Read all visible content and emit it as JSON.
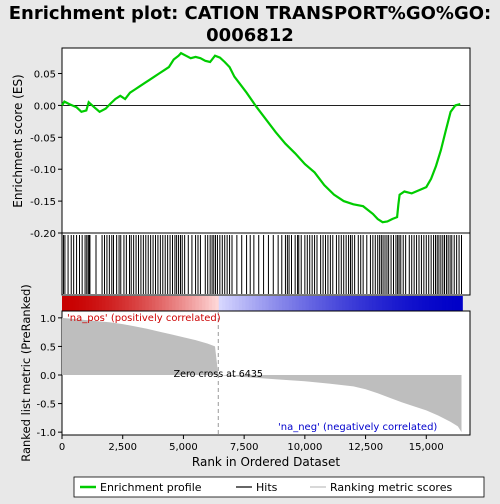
{
  "chart_data": {
    "type": "line",
    "title": "Enrichment plot: CATION TRANSPORT%GO%GO:\n0006812",
    "xlabel": "Rank in Ordered Dataset",
    "x_ticks": [
      0,
      2500,
      5000,
      7500,
      10000,
      12500,
      15000
    ],
    "x_tick_labels": [
      "0",
      "2,500",
      "5,000",
      "7,500",
      "10,000",
      "12,500",
      "15,000"
    ],
    "xlim": [
      0,
      16800
    ],
    "enrichment_panel": {
      "ylabel": "Enrichment score (ES)",
      "ylim": [
        -0.2,
        0.09
      ],
      "y_ticks": [
        -0.2,
        -0.15,
        -0.1,
        -0.05,
        0.0,
        0.05
      ],
      "y_tick_labels": [
        "-0.20",
        "-0.15",
        "-0.10",
        "-0.05",
        "0.00",
        "0.05"
      ],
      "series_name": "Enrichment profile",
      "color": "#00cc00",
      "points": [
        [
          0,
          0.0
        ],
        [
          100,
          0.006
        ],
        [
          300,
          0.002
        ],
        [
          600,
          -0.003
        ],
        [
          800,
          -0.01
        ],
        [
          1000,
          -0.008
        ],
        [
          1100,
          0.005
        ],
        [
          1300,
          -0.002
        ],
        [
          1550,
          -0.01
        ],
        [
          1800,
          -0.005
        ],
        [
          2000,
          0.003
        ],
        [
          2200,
          0.01
        ],
        [
          2400,
          0.015
        ],
        [
          2600,
          0.01
        ],
        [
          2800,
          0.02
        ],
        [
          3000,
          0.025
        ],
        [
          3200,
          0.03
        ],
        [
          3400,
          0.035
        ],
        [
          3600,
          0.04
        ],
        [
          3800,
          0.045
        ],
        [
          4000,
          0.05
        ],
        [
          4200,
          0.055
        ],
        [
          4400,
          0.06
        ],
        [
          4600,
          0.072
        ],
        [
          4800,
          0.078
        ],
        [
          4900,
          0.082
        ],
        [
          5100,
          0.078
        ],
        [
          5300,
          0.074
        ],
        [
          5500,
          0.076
        ],
        [
          5700,
          0.074
        ],
        [
          5900,
          0.07
        ],
        [
          6100,
          0.068
        ],
        [
          6300,
          0.078
        ],
        [
          6500,
          0.075
        ],
        [
          6700,
          0.068
        ],
        [
          6900,
          0.06
        ],
        [
          7100,
          0.045
        ],
        [
          7300,
          0.035
        ],
        [
          7600,
          0.02
        ],
        [
          8000,
          -0.002
        ],
        [
          8400,
          -0.022
        ],
        [
          8800,
          -0.042
        ],
        [
          9200,
          -0.06
        ],
        [
          9600,
          -0.075
        ],
        [
          10000,
          -0.092
        ],
        [
          10400,
          -0.105
        ],
        [
          10800,
          -0.125
        ],
        [
          11200,
          -0.14
        ],
        [
          11600,
          -0.15
        ],
        [
          12000,
          -0.155
        ],
        [
          12400,
          -0.158
        ],
        [
          12800,
          -0.17
        ],
        [
          13000,
          -0.178
        ],
        [
          13200,
          -0.183
        ],
        [
          13400,
          -0.182
        ],
        [
          13600,
          -0.178
        ],
        [
          13800,
          -0.175
        ],
        [
          13850,
          -0.155
        ],
        [
          13900,
          -0.14
        ],
        [
          14100,
          -0.135
        ],
        [
          14400,
          -0.138
        ],
        [
          14700,
          -0.133
        ],
        [
          15000,
          -0.128
        ],
        [
          15200,
          -0.115
        ],
        [
          15400,
          -0.095
        ],
        [
          15600,
          -0.07
        ],
        [
          15800,
          -0.04
        ],
        [
          16000,
          -0.01
        ],
        [
          16200,
          0.0
        ],
        [
          16400,
          0.002
        ]
      ]
    },
    "hits_panel": {
      "series_name": "Hits",
      "hit_ranks": [
        60,
        120,
        250,
        380,
        480,
        600,
        720,
        830,
        950,
        1020,
        1080,
        1120,
        1150,
        1400,
        1650,
        1750,
        1850,
        1950,
        2050,
        2120,
        2250,
        2350,
        2420,
        2550,
        2650,
        2780,
        2850,
        2950,
        3050,
        3150,
        3250,
        3350,
        3450,
        3550,
        3650,
        3750,
        3850,
        3950,
        4050,
        4150,
        4250,
        4350,
        4450,
        4550,
        4650,
        4720,
        4800,
        4880,
        4950,
        5050,
        5200,
        5350,
        5500,
        5600,
        5700,
        5900,
        6000,
        6100,
        6180,
        6250,
        6320,
        6400,
        6500,
        6600,
        6700,
        6800,
        6900,
        7000,
        7200,
        7400,
        7600,
        7750,
        7900,
        8100,
        8300,
        8500,
        8700,
        8900,
        9050,
        9200,
        9280,
        9350,
        9450,
        9600,
        9700,
        9750,
        9850,
        10000,
        10100,
        10200,
        10300,
        10400,
        10500,
        10650,
        10750,
        10850,
        10950,
        11050,
        11150,
        11300,
        11400,
        11500,
        11600,
        11700,
        11800,
        11880,
        11950,
        12050,
        12200,
        12300,
        12400,
        12550,
        12700,
        12800,
        12900,
        13000,
        13080,
        13150,
        13220,
        13300,
        13380,
        13450,
        13550,
        13650,
        13750,
        13820,
        13880,
        13950,
        14050,
        14150,
        14300,
        14400,
        14500,
        14600,
        14700,
        14800,
        14900,
        15000,
        15100,
        15200,
        15300,
        15380,
        15450,
        15520,
        15600,
        15680,
        15750,
        15830,
        15900,
        15980,
        16050,
        16150,
        16250,
        16350,
        16450
      ]
    },
    "metric_panel": {
      "ylabel": "Ranked list metric (PreRanked)",
      "ylim": [
        -1.05,
        1.12
      ],
      "y_ticks": [
        -1.0,
        -0.5,
        0.0,
        0.5,
        1.0
      ],
      "y_tick_labels": [
        "-1.0",
        "-0.5",
        "0.0",
        "0.5",
        "1.0"
      ],
      "series_name": "Ranking metric scores",
      "color": "#bebebe",
      "zero_cross_rank": 6435,
      "annotation_zero_cross": "Zero cross at 6435",
      "annotation_pos": "'na_pos' (positively correlated)",
      "annotation_neg": "'na_neg' (negatively correlated)",
      "pos_color": "#cc0000",
      "neg_color": "#0000cc",
      "profile": [
        [
          0,
          1.0
        ],
        [
          500,
          0.98
        ],
        [
          1000,
          0.96
        ],
        [
          1500,
          0.94
        ],
        [
          2000,
          0.92
        ],
        [
          2500,
          0.89
        ],
        [
          3000,
          0.85
        ],
        [
          3500,
          0.81
        ],
        [
          4000,
          0.76
        ],
        [
          4500,
          0.71
        ],
        [
          5000,
          0.66
        ],
        [
          5500,
          0.61
        ],
        [
          6000,
          0.55
        ],
        [
          6300,
          0.5
        ],
        [
          6435,
          0.0
        ],
        [
          7000,
          -0.02
        ],
        [
          8000,
          -0.05
        ],
        [
          9000,
          -0.08
        ],
        [
          10000,
          -0.11
        ],
        [
          11000,
          -0.15
        ],
        [
          12000,
          -0.2
        ],
        [
          12500,
          -0.25
        ],
        [
          13000,
          -0.32
        ],
        [
          13500,
          -0.4
        ],
        [
          14000,
          -0.48
        ],
        [
          14500,
          -0.55
        ],
        [
          15000,
          -0.62
        ],
        [
          15500,
          -0.71
        ],
        [
          16000,
          -0.82
        ],
        [
          16300,
          -0.9
        ],
        [
          16450,
          -1.0
        ]
      ]
    },
    "legend": {
      "placement": "bottom",
      "items": [
        {
          "label": "Enrichment profile",
          "color": "#00cc00",
          "kind": "line"
        },
        {
          "label": "Hits",
          "color": "#000000",
          "kind": "line"
        },
        {
          "label": "Ranking metric scores",
          "color": "#bebebe",
          "kind": "line"
        }
      ]
    }
  }
}
